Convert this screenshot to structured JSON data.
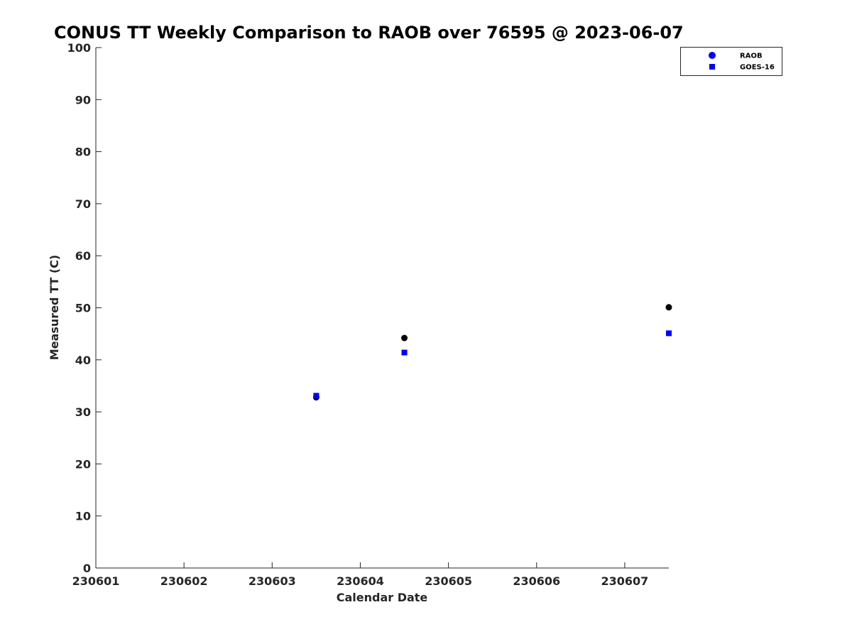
{
  "chart_data": {
    "type": "scatter",
    "title": "CONUS TT Weekly Comparison to RAOB over 76595 @ 2023-06-07",
    "xlabel": "Calendar Date",
    "ylabel": "Measured TT (C)",
    "xlim": [
      230601,
      230607.5
    ],
    "ylim": [
      0,
      100
    ],
    "xticks": [
      "230601",
      "230602",
      "230603",
      "230604",
      "230605",
      "230606",
      "230607"
    ],
    "yticks": [
      "0",
      "10",
      "20",
      "30",
      "40",
      "50",
      "60",
      "70",
      "80",
      "90",
      "100"
    ],
    "grid": false,
    "legend_position": "top-right",
    "series": [
      {
        "name": "RAOB",
        "marker": "circle",
        "color": "#000000",
        "legend_color": "#0000ff",
        "points": [
          {
            "x": 230603.5,
            "y": 32.8
          },
          {
            "x": 230604.5,
            "y": 44.2
          },
          {
            "x": 230607.5,
            "y": 50.1
          }
        ]
      },
      {
        "name": "GOES-16",
        "marker": "square",
        "color": "#0000ff",
        "legend_color": "#0000ff",
        "points": [
          {
            "x": 230603.5,
            "y": 33.1
          },
          {
            "x": 230604.5,
            "y": 41.4
          },
          {
            "x": 230607.5,
            "y": 45.1
          }
        ]
      }
    ]
  }
}
